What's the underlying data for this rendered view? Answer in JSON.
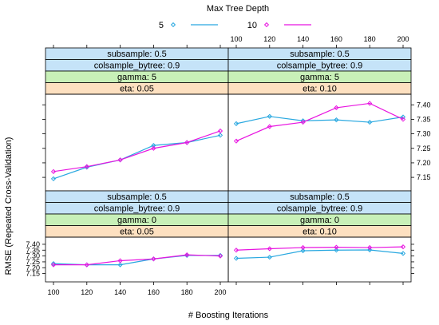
{
  "chart_data": {
    "type": "line",
    "title": "",
    "xlabel": "# Boosting Iterations",
    "ylabel": "RMSE (Repeated Cross-Validation)",
    "legend": {
      "title": "Max Tree Depth",
      "placement": "top",
      "entries": [
        {
          "name": "5",
          "color": "#29a8e0",
          "marker": "diamond"
        },
        {
          "name": "10",
          "color": "#e815e0",
          "marker": "diamond"
        }
      ]
    },
    "x": [
      100,
      120,
      140,
      160,
      180,
      200
    ],
    "x_ticks": [
      "100",
      "120",
      "140",
      "160",
      "180",
      "200"
    ],
    "xlim": [
      95,
      205
    ],
    "ylim": [
      7.12,
      7.42
    ],
    "y_ticks": [
      7.15,
      7.2,
      7.25,
      7.3,
      7.35,
      7.4
    ],
    "y_tick_labels": [
      "7.15",
      "7.20",
      "7.25",
      "7.30",
      "7.35",
      "7.40"
    ],
    "grid": false,
    "panels": [
      {
        "id": "top-left",
        "strips": [
          "subsample: 0.5",
          "colsample_bytree: 0.9",
          "gamma: 5",
          "eta: 0.05"
        ],
        "series": [
          {
            "name": "5",
            "values": [
              7.145,
              7.185,
              7.21,
              7.26,
              7.27,
              7.295
            ]
          },
          {
            "name": "10",
            "values": [
              7.17,
              7.187,
              7.21,
              7.25,
              7.27,
              7.31
            ]
          }
        ]
      },
      {
        "id": "top-right",
        "strips": [
          "subsample: 0.5",
          "colsample_bytree: 0.9",
          "gamma: 5",
          "eta: 0.10"
        ],
        "series": [
          {
            "name": "5",
            "values": [
              7.335,
              7.36,
              7.345,
              7.348,
              7.34,
              7.358
            ]
          },
          {
            "name": "10",
            "values": [
              7.275,
              7.325,
              7.34,
              7.39,
              7.405,
              7.35
            ]
          }
        ]
      },
      {
        "id": "bottom-left",
        "strips": [
          "subsample: 0.5",
          "colsample_bytree: 0.9",
          "gamma: 0",
          "eta: 0.05"
        ],
        "series": [
          {
            "name": "5",
            "values": [
              7.235,
              7.225,
              7.225,
              7.275,
              7.305,
              7.305
            ]
          },
          {
            "name": "10",
            "values": [
              7.225,
              7.225,
              7.26,
              7.275,
              7.31,
              7.3
            ]
          }
        ]
      },
      {
        "id": "bottom-right",
        "strips": [
          "subsample: 0.5",
          "colsample_bytree: 0.9",
          "gamma: 0",
          "eta: 0.10"
        ],
        "series": [
          {
            "name": "5",
            "values": [
              7.28,
              7.29,
              7.345,
              7.35,
              7.352,
              7.322
            ]
          },
          {
            "name": "10",
            "values": [
              7.35,
              7.362,
              7.372,
              7.375,
              7.372,
              7.378
            ]
          }
        ]
      }
    ],
    "strip_colors": [
      "#c5e3f8",
      "#c5e3f8",
      "#c8f0b8",
      "#fde0c0"
    ]
  }
}
